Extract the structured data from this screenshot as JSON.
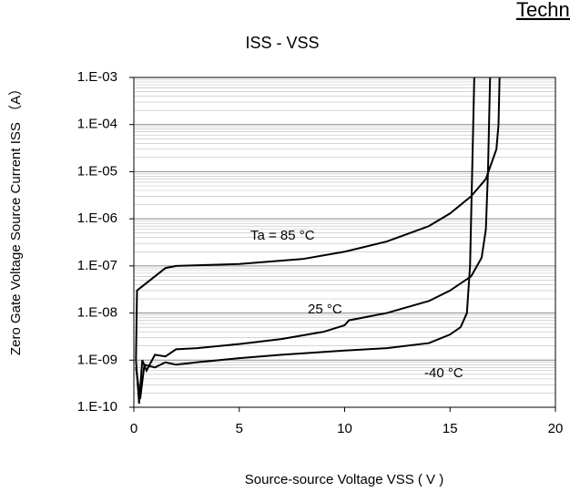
{
  "chart_data": {
    "type": "line",
    "header": "Technical Da",
    "title": "ISS - VSS",
    "x_label": "Source-source Voltage VSS ( V )",
    "y_label": "Zero Gate Voltage Source Current ISS （A）",
    "log_y": true,
    "grid": true,
    "xlim": [
      0,
      20
    ],
    "xticks": [
      0,
      5,
      10,
      15,
      20
    ],
    "ylim": [
      1e-10,
      0.001
    ],
    "yticks": [
      {
        "value": 1e-10,
        "label": "1.E-10"
      },
      {
        "value": 1e-09,
        "label": "1.E-09"
      },
      {
        "value": 1e-08,
        "label": "1.E-08"
      },
      {
        "value": 1e-07,
        "label": "1.E-07"
      },
      {
        "value": 1e-06,
        "label": "1.E-06"
      },
      {
        "value": 1e-05,
        "label": "1.E-05"
      },
      {
        "value": 0.0001,
        "label": "1.E-04"
      },
      {
        "value": 0.001,
        "label": "1.E-03"
      }
    ],
    "series": [
      {
        "name": "Ta = 85 °C",
        "color": "#000000",
        "x": [
          0.1,
          0.15,
          0.5,
          1.0,
          1.5,
          2,
          5,
          8,
          10,
          12,
          14,
          15,
          16,
          16.7,
          17.2,
          17.3,
          17.35
        ],
        "values": [
          1e-09,
          3e-08,
          4e-08,
          6e-08,
          9e-08,
          1e-07,
          1.1e-07,
          1.4e-07,
          2e-07,
          3.3e-07,
          7e-07,
          1.3e-06,
          3e-06,
          7e-06,
          3e-05,
          0.0001,
          0.001
        ]
      },
      {
        "name": "25 °C",
        "color": "#000000",
        "x": [
          0.1,
          0.25,
          0.4,
          0.6,
          1,
          1.5,
          2,
          3,
          5,
          7,
          9,
          10,
          10.2,
          12,
          14,
          15,
          16,
          16.5,
          16.7,
          16.8,
          16.85,
          16.9
        ],
        "values": [
          1e-09,
          1.2e-10,
          1e-09,
          6e-10,
          1.3e-09,
          1.2e-09,
          1.7e-09,
          1.8e-09,
          2.2e-09,
          2.8e-09,
          4e-09,
          5.5e-09,
          7e-09,
          1e-08,
          1.8e-08,
          3e-08,
          6e-08,
          1.5e-07,
          6e-07,
          1e-05,
          0.0001,
          0.001
        ]
      },
      {
        "name": "-40 °C",
        "color": "#000000",
        "x": [
          0.1,
          0.3,
          0.5,
          1,
          1.5,
          2,
          3,
          5,
          7,
          10,
          12,
          14,
          15,
          15.5,
          15.8,
          15.95,
          16.0,
          16.05,
          16.1,
          16.15
        ],
        "values": [
          7e-10,
          1.5e-10,
          8e-10,
          7e-10,
          9e-10,
          8e-10,
          9e-10,
          1.1e-09,
          1.3e-09,
          1.6e-09,
          1.8e-09,
          2.3e-09,
          3.5e-09,
          5e-09,
          1e-08,
          1e-07,
          1e-06,
          1e-05,
          0.0001,
          0.001
        ]
      }
    ]
  }
}
